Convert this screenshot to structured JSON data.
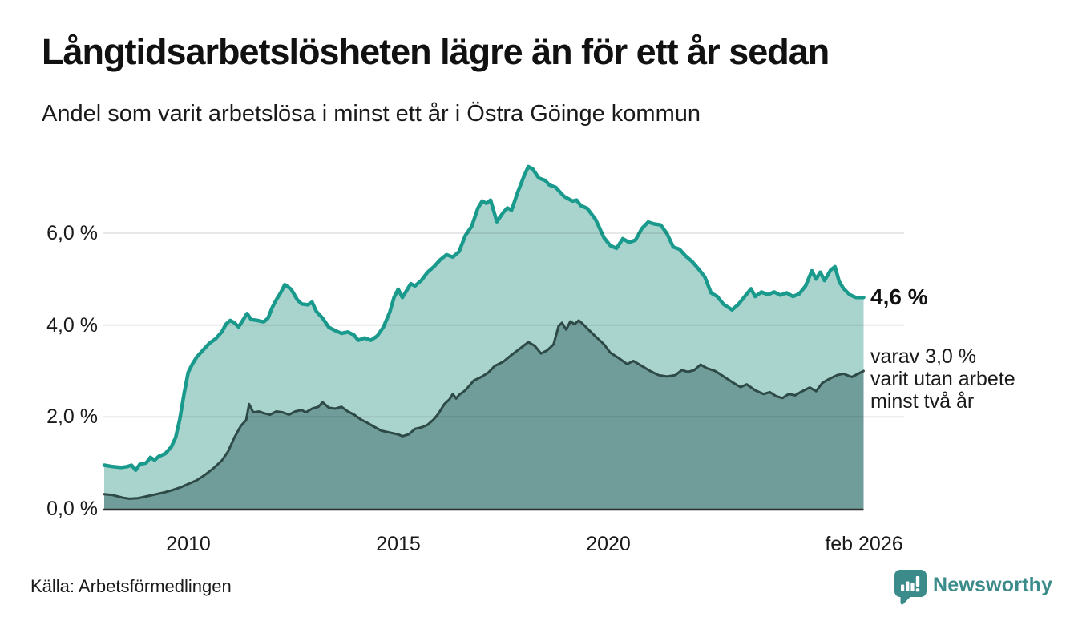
{
  "header": {
    "title": "Långtidsarbetslösheten lägre än för ett år sedan",
    "subtitle": "Andel som varit arbetslösa i minst ett år i Östra Göinge kommun"
  },
  "chart_data": {
    "type": "area",
    "title": "Långtidsarbetslösheten lägre än för ett år sedan",
    "subtitle": "Andel som varit arbetslösa i minst ett år i Östra Göinge kommun",
    "unit": "%",
    "x_axis": {
      "range": [
        2008.0,
        2026.083
      ],
      "ticks": [
        {
          "value": 2010,
          "label": "2010"
        },
        {
          "value": 2015,
          "label": "2015"
        },
        {
          "value": 2020,
          "label": "2020"
        },
        {
          "value": 2026.083,
          "label": "feb 2026"
        }
      ]
    },
    "y_axis": {
      "range": [
        0,
        7.6
      ],
      "gridlines": true,
      "ticks": [
        {
          "value": 0,
          "label": "0,0 %"
        },
        {
          "value": 2,
          "label": "2,0 %"
        },
        {
          "value": 4,
          "label": "4,0 %"
        },
        {
          "value": 6,
          "label": "6,0 %"
        }
      ]
    },
    "series": [
      {
        "id": "arbetslosa-minst-ett-ar",
        "name": "Andel som varit arbetslösa i minst ett år",
        "line_color": "#1a9a8c",
        "fill_color": "#a9d4cd",
        "end_value": 4.6,
        "end_label": "4,6 %",
        "points": [
          [
            2008.0,
            0.95
          ],
          [
            2008.2,
            0.92
          ],
          [
            2008.4,
            0.9
          ],
          [
            2008.55,
            0.92
          ],
          [
            2008.65,
            0.95
          ],
          [
            2008.75,
            0.84
          ],
          [
            2008.85,
            0.97
          ],
          [
            2009.0,
            1.0
          ],
          [
            2009.1,
            1.12
          ],
          [
            2009.2,
            1.06
          ],
          [
            2009.3,
            1.14
          ],
          [
            2009.45,
            1.2
          ],
          [
            2009.6,
            1.35
          ],
          [
            2009.7,
            1.55
          ],
          [
            2009.8,
            1.95
          ],
          [
            2009.9,
            2.5
          ],
          [
            2010.0,
            2.97
          ],
          [
            2010.1,
            3.15
          ],
          [
            2010.2,
            3.3
          ],
          [
            2010.35,
            3.45
          ],
          [
            2010.5,
            3.6
          ],
          [
            2010.65,
            3.7
          ],
          [
            2010.8,
            3.85
          ],
          [
            2010.9,
            4.02
          ],
          [
            2011.0,
            4.1
          ],
          [
            2011.1,
            4.05
          ],
          [
            2011.2,
            3.96
          ],
          [
            2011.3,
            4.1
          ],
          [
            2011.4,
            4.25
          ],
          [
            2011.5,
            4.12
          ],
          [
            2011.65,
            4.1
          ],
          [
            2011.8,
            4.07
          ],
          [
            2011.9,
            4.15
          ],
          [
            2012.0,
            4.38
          ],
          [
            2012.1,
            4.55
          ],
          [
            2012.2,
            4.7
          ],
          [
            2012.3,
            4.88
          ],
          [
            2012.45,
            4.78
          ],
          [
            2012.6,
            4.55
          ],
          [
            2012.7,
            4.46
          ],
          [
            2012.85,
            4.44
          ],
          [
            2012.95,
            4.5
          ],
          [
            2013.05,
            4.3
          ],
          [
            2013.2,
            4.15
          ],
          [
            2013.35,
            3.95
          ],
          [
            2013.5,
            3.88
          ],
          [
            2013.65,
            3.82
          ],
          [
            2013.8,
            3.85
          ],
          [
            2013.95,
            3.78
          ],
          [
            2014.05,
            3.67
          ],
          [
            2014.2,
            3.72
          ],
          [
            2014.35,
            3.67
          ],
          [
            2014.5,
            3.76
          ],
          [
            2014.65,
            3.96
          ],
          [
            2014.8,
            4.28
          ],
          [
            2014.9,
            4.6
          ],
          [
            2015.0,
            4.78
          ],
          [
            2015.1,
            4.6
          ],
          [
            2015.2,
            4.75
          ],
          [
            2015.3,
            4.9
          ],
          [
            2015.4,
            4.85
          ],
          [
            2015.55,
            4.97
          ],
          [
            2015.7,
            5.15
          ],
          [
            2015.85,
            5.27
          ],
          [
            2016.0,
            5.42
          ],
          [
            2016.15,
            5.53
          ],
          [
            2016.3,
            5.48
          ],
          [
            2016.45,
            5.6
          ],
          [
            2016.6,
            5.95
          ],
          [
            2016.75,
            6.15
          ],
          [
            2016.9,
            6.55
          ],
          [
            2017.0,
            6.7
          ],
          [
            2017.1,
            6.65
          ],
          [
            2017.2,
            6.72
          ],
          [
            2017.35,
            6.25
          ],
          [
            2017.5,
            6.45
          ],
          [
            2017.6,
            6.55
          ],
          [
            2017.7,
            6.5
          ],
          [
            2017.85,
            6.9
          ],
          [
            2018.0,
            7.25
          ],
          [
            2018.1,
            7.45
          ],
          [
            2018.2,
            7.4
          ],
          [
            2018.35,
            7.2
          ],
          [
            2018.5,
            7.15
          ],
          [
            2018.6,
            7.05
          ],
          [
            2018.75,
            7.0
          ],
          [
            2018.85,
            6.9
          ],
          [
            2018.95,
            6.8
          ],
          [
            2019.05,
            6.75
          ],
          [
            2019.15,
            6.7
          ],
          [
            2019.25,
            6.72
          ],
          [
            2019.35,
            6.6
          ],
          [
            2019.5,
            6.54
          ],
          [
            2019.7,
            6.3
          ],
          [
            2019.9,
            5.9
          ],
          [
            2020.05,
            5.73
          ],
          [
            2020.2,
            5.67
          ],
          [
            2020.35,
            5.88
          ],
          [
            2020.5,
            5.8
          ],
          [
            2020.65,
            5.85
          ],
          [
            2020.8,
            6.1
          ],
          [
            2020.95,
            6.24
          ],
          [
            2021.1,
            6.2
          ],
          [
            2021.25,
            6.18
          ],
          [
            2021.4,
            5.99
          ],
          [
            2021.55,
            5.7
          ],
          [
            2021.7,
            5.65
          ],
          [
            2021.85,
            5.5
          ],
          [
            2022.0,
            5.38
          ],
          [
            2022.15,
            5.22
          ],
          [
            2022.3,
            5.05
          ],
          [
            2022.45,
            4.7
          ],
          [
            2022.6,
            4.62
          ],
          [
            2022.75,
            4.45
          ],
          [
            2022.95,
            4.33
          ],
          [
            2023.1,
            4.45
          ],
          [
            2023.25,
            4.62
          ],
          [
            2023.4,
            4.79
          ],
          [
            2023.5,
            4.62
          ],
          [
            2023.65,
            4.72
          ],
          [
            2023.8,
            4.66
          ],
          [
            2023.95,
            4.72
          ],
          [
            2024.1,
            4.65
          ],
          [
            2024.25,
            4.7
          ],
          [
            2024.4,
            4.62
          ],
          [
            2024.55,
            4.68
          ],
          [
            2024.7,
            4.85
          ],
          [
            2024.85,
            5.18
          ],
          [
            2024.95,
            5.0
          ],
          [
            2025.05,
            5.15
          ],
          [
            2025.15,
            4.97
          ],
          [
            2025.3,
            5.2
          ],
          [
            2025.4,
            5.27
          ],
          [
            2025.5,
            4.95
          ],
          [
            2025.6,
            4.8
          ],
          [
            2025.75,
            4.66
          ],
          [
            2025.9,
            4.6
          ],
          [
            2026.083,
            4.6
          ]
        ]
      },
      {
        "id": "utan-arbete-minst-tva-ar",
        "name": "Andel som varit utan arbete minst två år",
        "line_color": "#2e4a47",
        "fill_color": "#709c99",
        "end_value": 3.0,
        "end_label": "3,0 %",
        "points": [
          [
            2008.0,
            0.32
          ],
          [
            2008.2,
            0.3
          ],
          [
            2008.45,
            0.24
          ],
          [
            2008.6,
            0.22
          ],
          [
            2008.8,
            0.23
          ],
          [
            2009.0,
            0.27
          ],
          [
            2009.2,
            0.31
          ],
          [
            2009.4,
            0.35
          ],
          [
            2009.6,
            0.4
          ],
          [
            2009.8,
            0.46
          ],
          [
            2010.0,
            0.54
          ],
          [
            2010.2,
            0.62
          ],
          [
            2010.4,
            0.74
          ],
          [
            2010.6,
            0.88
          ],
          [
            2010.8,
            1.05
          ],
          [
            2010.95,
            1.25
          ],
          [
            2011.1,
            1.55
          ],
          [
            2011.25,
            1.8
          ],
          [
            2011.38,
            1.93
          ],
          [
            2011.45,
            2.28
          ],
          [
            2011.55,
            2.1
          ],
          [
            2011.7,
            2.12
          ],
          [
            2011.8,
            2.08
          ],
          [
            2011.95,
            2.05
          ],
          [
            2012.1,
            2.12
          ],
          [
            2012.25,
            2.1
          ],
          [
            2012.4,
            2.05
          ],
          [
            2012.55,
            2.12
          ],
          [
            2012.7,
            2.15
          ],
          [
            2012.8,
            2.1
          ],
          [
            2012.95,
            2.18
          ],
          [
            2013.1,
            2.22
          ],
          [
            2013.2,
            2.32
          ],
          [
            2013.35,
            2.2
          ],
          [
            2013.5,
            2.18
          ],
          [
            2013.65,
            2.22
          ],
          [
            2013.8,
            2.12
          ],
          [
            2013.95,
            2.05
          ],
          [
            2014.1,
            1.95
          ],
          [
            2014.25,
            1.88
          ],
          [
            2014.4,
            1.8
          ],
          [
            2014.6,
            1.7
          ],
          [
            2014.8,
            1.66
          ],
          [
            2015.0,
            1.62
          ],
          [
            2015.1,
            1.58
          ],
          [
            2015.25,
            1.62
          ],
          [
            2015.4,
            1.74
          ],
          [
            2015.55,
            1.77
          ],
          [
            2015.7,
            1.83
          ],
          [
            2015.85,
            1.95
          ],
          [
            2015.95,
            2.06
          ],
          [
            2016.1,
            2.28
          ],
          [
            2016.22,
            2.38
          ],
          [
            2016.3,
            2.5
          ],
          [
            2016.38,
            2.4
          ],
          [
            2016.45,
            2.48
          ],
          [
            2016.6,
            2.58
          ],
          [
            2016.8,
            2.79
          ],
          [
            2017.0,
            2.88
          ],
          [
            2017.15,
            2.97
          ],
          [
            2017.3,
            3.11
          ],
          [
            2017.5,
            3.2
          ],
          [
            2017.7,
            3.35
          ],
          [
            2017.9,
            3.49
          ],
          [
            2018.1,
            3.63
          ],
          [
            2018.25,
            3.55
          ],
          [
            2018.4,
            3.38
          ],
          [
            2018.55,
            3.45
          ],
          [
            2018.7,
            3.58
          ],
          [
            2018.82,
            3.98
          ],
          [
            2018.9,
            4.05
          ],
          [
            2019.0,
            3.9
          ],
          [
            2019.1,
            4.08
          ],
          [
            2019.2,
            4.02
          ],
          [
            2019.3,
            4.1
          ],
          [
            2019.4,
            4.02
          ],
          [
            2019.5,
            3.93
          ],
          [
            2019.7,
            3.75
          ],
          [
            2019.9,
            3.58
          ],
          [
            2020.05,
            3.4
          ],
          [
            2020.25,
            3.28
          ],
          [
            2020.45,
            3.15
          ],
          [
            2020.6,
            3.22
          ],
          [
            2020.8,
            3.11
          ],
          [
            2021.0,
            3.0
          ],
          [
            2021.2,
            2.91
          ],
          [
            2021.4,
            2.88
          ],
          [
            2021.6,
            2.91
          ],
          [
            2021.75,
            3.02
          ],
          [
            2021.9,
            2.98
          ],
          [
            2022.05,
            3.02
          ],
          [
            2022.2,
            3.14
          ],
          [
            2022.35,
            3.06
          ],
          [
            2022.55,
            3.0
          ],
          [
            2022.75,
            2.88
          ],
          [
            2022.95,
            2.76
          ],
          [
            2023.15,
            2.65
          ],
          [
            2023.3,
            2.71
          ],
          [
            2023.5,
            2.58
          ],
          [
            2023.7,
            2.5
          ],
          [
            2023.85,
            2.54
          ],
          [
            2024.0,
            2.45
          ],
          [
            2024.15,
            2.41
          ],
          [
            2024.3,
            2.5
          ],
          [
            2024.45,
            2.47
          ],
          [
            2024.6,
            2.55
          ],
          [
            2024.8,
            2.64
          ],
          [
            2024.95,
            2.56
          ],
          [
            2025.1,
            2.74
          ],
          [
            2025.25,
            2.82
          ],
          [
            2025.45,
            2.91
          ],
          [
            2025.6,
            2.94
          ],
          [
            2025.8,
            2.87
          ],
          [
            2026.083,
            3.0
          ]
        ]
      }
    ],
    "annotations": {
      "primary": "4,6 %",
      "secondary": "varav 3,0 %\nvarit utan arbete\nminst två år"
    }
  },
  "footer": {
    "source": "Källa: Arbetsförmedlingen",
    "brand": "Newsworthy",
    "brand_color": "#3b8b8b"
  }
}
